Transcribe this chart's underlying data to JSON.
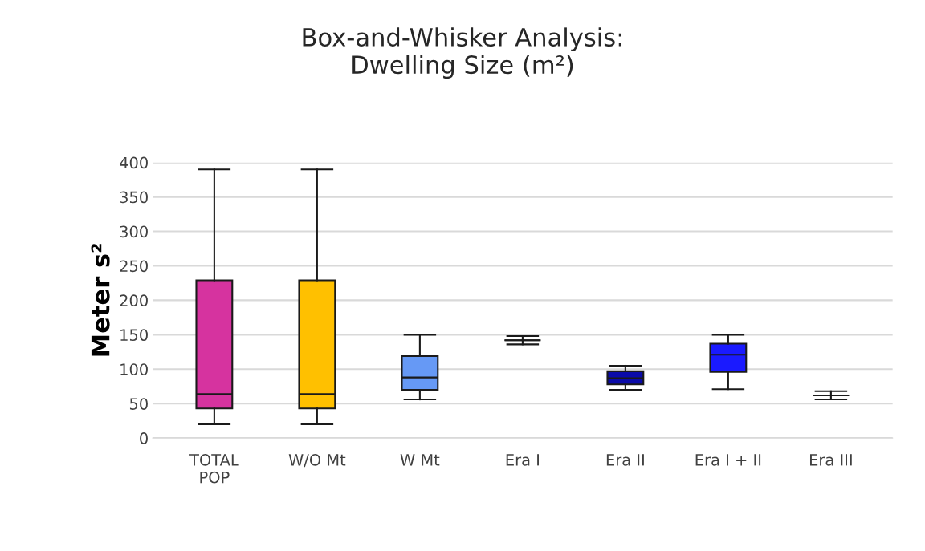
{
  "chart_data": {
    "type": "box",
    "title": "Box-and-Whisker Analysis:\nDwelling Size (m²)",
    "ylabel": "Meter s²",
    "categories": [
      "TOTAL\nPOP",
      "W/O Mt",
      "W Mt",
      "Era I",
      "Era II",
      "Era I + II",
      "Era III"
    ],
    "colors": [
      "#d6339f",
      "#ffc000",
      "#6699f5",
      "#1a1a1a",
      "#0a0aa8",
      "#1a1aff",
      "#1a1a1a"
    ],
    "boxes": [
      {
        "low": 20,
        "q1": 43,
        "median": 64,
        "q3": 229,
        "high": 390
      },
      {
        "low": 20,
        "q1": 43,
        "median": 64,
        "q3": 229,
        "high": 390
      },
      {
        "low": 56,
        "q1": 70,
        "median": 88,
        "q3": 119,
        "high": 150
      },
      {
        "low": 136,
        "q1": 142,
        "median": 142,
        "q3": 142,
        "high": 148
      },
      {
        "low": 70,
        "q1": 78,
        "median": 87,
        "q3": 97,
        "high": 105
      },
      {
        "low": 71,
        "q1": 96,
        "median": 121,
        "q3": 137,
        "high": 150
      },
      {
        "low": 56,
        "q1": 62,
        "median": 62,
        "q3": 62,
        "high": 68
      }
    ],
    "ylim": [
      0,
      400
    ],
    "yticks": [
      0,
      50,
      100,
      150,
      200,
      250,
      300,
      350,
      400
    ],
    "grid": "y"
  }
}
